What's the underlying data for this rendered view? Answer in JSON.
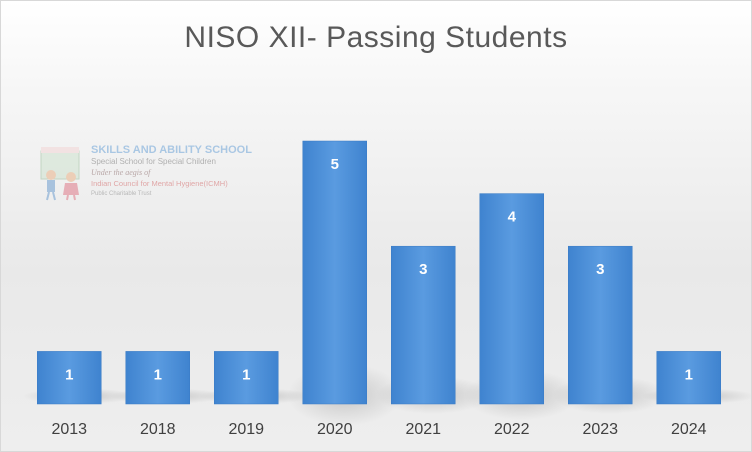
{
  "chart_data": {
    "type": "bar",
    "title": "NISO XII- Passing Students",
    "categories": [
      "2013",
      "2018",
      "2019",
      "2020",
      "2021",
      "2022",
      "2023",
      "2024"
    ],
    "values": [
      1,
      1,
      1,
      5,
      3,
      4,
      3,
      1
    ],
    "ylim": [
      0,
      5
    ],
    "grid": false,
    "data_labels": true,
    "bar_color": "#4a8fd6"
  },
  "watermark": {
    "line1": "SKILLS AND ABILITY SCHOOL",
    "line2": "Special School for Special Children",
    "line3": "Under the aegis of",
    "line4": "Indian Council for Mental Hygiene(ICMH)",
    "line5": "Public Charitable Trust"
  }
}
